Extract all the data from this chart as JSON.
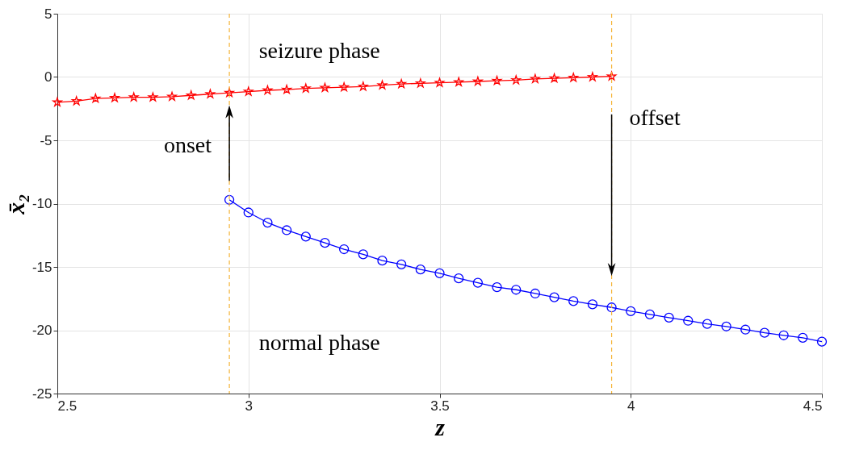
{
  "chart_data": {
    "type": "line",
    "xlabel": "z",
    "ylabel": "x̄₂",
    "xlim": [
      2.5,
      4.5
    ],
    "ylim": [
      -25,
      5
    ],
    "xticks": [
      2.5,
      3,
      3.5,
      4,
      4.5
    ],
    "yticks": [
      -25,
      -20,
      -15,
      -10,
      -5,
      0,
      5
    ],
    "grid": true,
    "line_style": "solid",
    "series": [
      {
        "color": "#ff0000",
        "marker": "star",
        "x": [
          2.5,
          2.55,
          2.6,
          2.65,
          2.7,
          2.75,
          2.8,
          2.85,
          2.9,
          2.95,
          3.0,
          3.05,
          3.1,
          3.15,
          3.2,
          3.25,
          3.3,
          3.35,
          3.4,
          3.45,
          3.5,
          3.55,
          3.6,
          3.65,
          3.7,
          3.75,
          3.8,
          3.85,
          3.9,
          3.95
        ],
        "values": [
          -2.0,
          -1.9,
          -1.7,
          -1.65,
          -1.6,
          -1.6,
          -1.55,
          -1.45,
          -1.35,
          -1.25,
          -1.15,
          -1.05,
          -1.0,
          -0.9,
          -0.85,
          -0.8,
          -0.75,
          -0.65,
          -0.55,
          -0.5,
          -0.45,
          -0.4,
          -0.35,
          -0.3,
          -0.25,
          -0.15,
          -0.1,
          -0.05,
          0.0,
          0.05
        ]
      },
      {
        "color": "#0000ff",
        "marker": "circle",
        "x": [
          2.95,
          3.0,
          3.05,
          3.1,
          3.15,
          3.2,
          3.25,
          3.3,
          3.35,
          3.4,
          3.45,
          3.5,
          3.55,
          3.6,
          3.65,
          3.7,
          3.75,
          3.8,
          3.85,
          3.9,
          3.95,
          4.0,
          4.05,
          4.1,
          4.15,
          4.2,
          4.25,
          4.3,
          4.35,
          4.4,
          4.45,
          4.5
        ],
        "values": [
          -9.7,
          -10.7,
          -11.5,
          -12.1,
          -12.6,
          -13.1,
          -13.6,
          -14.0,
          -14.5,
          -14.8,
          -15.2,
          -15.5,
          -15.9,
          -16.25,
          -16.6,
          -16.8,
          -17.1,
          -17.4,
          -17.7,
          -17.95,
          -18.2,
          -18.5,
          -18.75,
          -19.0,
          -19.25,
          -19.5,
          -19.7,
          -19.95,
          -20.2,
          -20.4,
          -20.6,
          -20.9
        ]
      }
    ],
    "ref_lines": [
      {
        "axis": "x",
        "value": 2.95,
        "label": "onset",
        "color": "#f5b335",
        "line_style": "dashed"
      },
      {
        "axis": "x",
        "value": 3.95,
        "label": "offset",
        "color": "#f5b335",
        "line_style": "dashed"
      }
    ],
    "annotations": [
      "seizure phase",
      "normal phase"
    ]
  }
}
